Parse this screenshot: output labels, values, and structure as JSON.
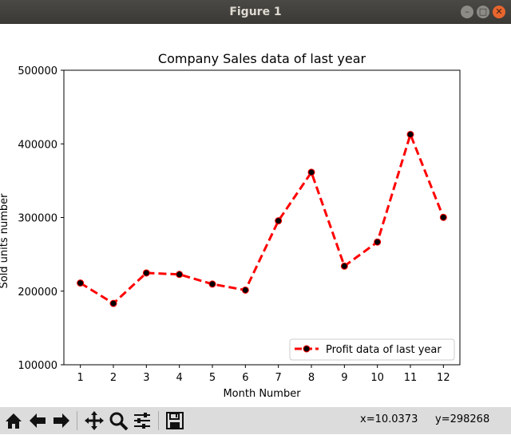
{
  "window": {
    "title": "Figure 1"
  },
  "toolbar": {
    "buttons": [
      "home-icon",
      "back-arrow-icon",
      "forward-arrow-icon",
      "pan-icon",
      "zoom-icon",
      "configure-subplots-icon",
      "save-icon"
    ],
    "x_readout": "x=10.0373",
    "y_readout": "y=298268"
  },
  "chart_data": {
    "type": "line",
    "title": "Company Sales data of last year",
    "xlabel": "Month Number",
    "ylabel": "Sold units number",
    "x": [
      1,
      2,
      3,
      4,
      5,
      6,
      7,
      8,
      9,
      10,
      11,
      12
    ],
    "series": [
      {
        "name": "Profit data of last year",
        "values": [
          211000,
          183300,
          224700,
          222700,
          209600,
          201400,
          295500,
          361400,
          234000,
          266700,
          412800,
          300200
        ],
        "color": "#ff0000",
        "marker_color": "#000000",
        "line_style": "dashed"
      }
    ],
    "xlim": [
      0.5,
      12.5
    ],
    "ylim": [
      100000,
      500000
    ],
    "xticks": [
      "1",
      "2",
      "3",
      "4",
      "5",
      "6",
      "7",
      "8",
      "9",
      "10",
      "11",
      "12"
    ],
    "yticks": [
      "100000",
      "200000",
      "300000",
      "400000",
      "500000"
    ],
    "grid": false,
    "legend_position": "lower-right"
  }
}
